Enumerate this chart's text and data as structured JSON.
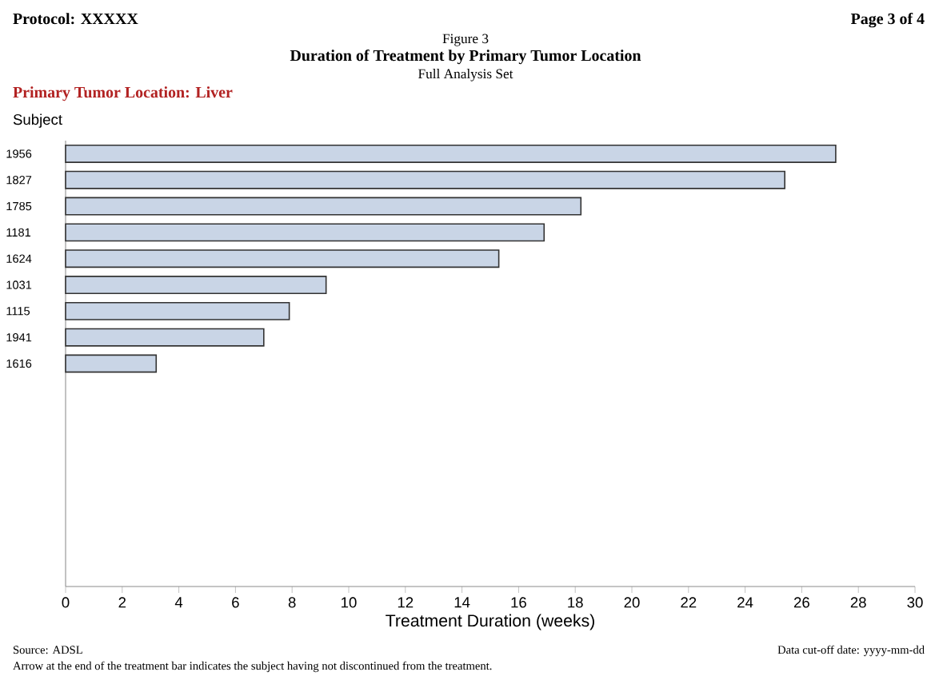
{
  "chart_data": {
    "type": "bar",
    "orientation": "horizontal",
    "title": "Figure 3",
    "subtitle": "Duration of Treatment by Primary Tumor Location",
    "ylabel": "Subject",
    "xlabel": "Treatment Duration (weeks)",
    "annotations": [
      "Protocol: XXXXX",
      "Page 3 of 4",
      "Full Analysis Set",
      "Primary Tumor Location: Liver",
      "Source: ADSL",
      "Data cut-off date: yyyy-mm-dd",
      "Arrow at the end of the treatment bar indicates the subject having not discontinued from the treatment."
    ],
    "categories": [
      "1956",
      "1827",
      "1785",
      "1181",
      "1624",
      "1031",
      "1115",
      "1941",
      "1616",
      null,
      null,
      null,
      null,
      null,
      null,
      null,
      null
    ],
    "values": [
      27.2,
      25.4,
      18.2,
      16.9,
      15.3,
      9.2,
      7.9,
      7.0,
      3.2,
      null,
      null,
      null,
      null,
      null,
      null,
      null,
      null
    ],
    "color": "#c9d5e6",
    "xlim": [
      0,
      30
    ],
    "xticks": [
      0,
      2,
      4,
      6,
      8,
      10,
      12,
      14,
      16,
      18,
      20,
      22,
      24,
      26,
      28,
      30
    ],
    "grid": false
  }
}
